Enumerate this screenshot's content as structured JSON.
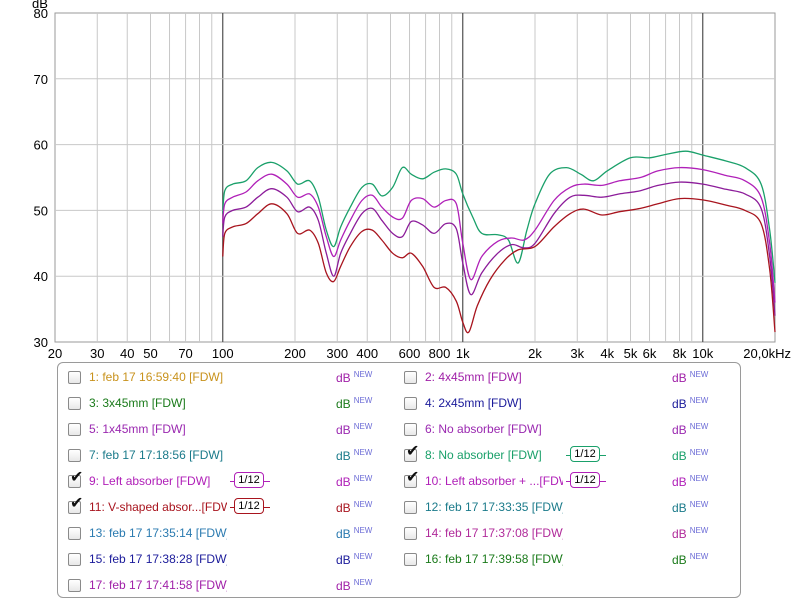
{
  "chart_data": {
    "type": "line",
    "ylabel": "dB",
    "x_unit": "kHz",
    "ylim": [
      30,
      80
    ],
    "xlim": [
      20,
      20000
    ],
    "x_scale": "log",
    "grid": true,
    "y_ticks": [
      30,
      40,
      50,
      60,
      70,
      80
    ],
    "x_ticks": [
      {
        "value": 20,
        "label": "20"
      },
      {
        "value": 30,
        "label": "30"
      },
      {
        "value": 40,
        "label": "40"
      },
      {
        "value": 50,
        "label": "50"
      },
      {
        "value": 70,
        "label": "70"
      },
      {
        "value": 100,
        "label": "100"
      },
      {
        "value": 200,
        "label": "200"
      },
      {
        "value": 300,
        "label": "300"
      },
      {
        "value": 400,
        "label": "400"
      },
      {
        "value": 600,
        "label": "600"
      },
      {
        "value": 800,
        "label": "800"
      },
      {
        "value": 1000,
        "label": "1k"
      },
      {
        "value": 2000,
        "label": "2k"
      },
      {
        "value": 3000,
        "label": "3k"
      },
      {
        "value": 4000,
        "label": "4k"
      },
      {
        "value": 5000,
        "label": "5k"
      },
      {
        "value": 6000,
        "label": "6k"
      },
      {
        "value": 8000,
        "label": "8k"
      },
      {
        "value": 10000,
        "label": "10k"
      },
      {
        "value": 20000,
        "label": "20,0kHz"
      }
    ],
    "series": [
      {
        "name": "8: No absorber [FDW]",
        "color": "#1aa06a",
        "points": [
          [
            100,
            49.5
          ],
          [
            102,
            53
          ],
          [
            110,
            54
          ],
          [
            125,
            54.5
          ],
          [
            140,
            56.5
          ],
          [
            160,
            57.3
          ],
          [
            185,
            56
          ],
          [
            205,
            54
          ],
          [
            230,
            54.5
          ],
          [
            250,
            52
          ],
          [
            270,
            47
          ],
          [
            290,
            44.5
          ],
          [
            310,
            47.5
          ],
          [
            340,
            50.5
          ],
          [
            380,
            53.5
          ],
          [
            420,
            54
          ],
          [
            460,
            52.2
          ],
          [
            510,
            53.5
          ],
          [
            560,
            56.5
          ],
          [
            610,
            55.5
          ],
          [
            680,
            54.8
          ],
          [
            760,
            55.8
          ],
          [
            850,
            56.3
          ],
          [
            940,
            55.5
          ],
          [
            1000,
            52.5
          ],
          [
            1100,
            49
          ],
          [
            1200,
            46.5
          ],
          [
            1400,
            46.3
          ],
          [
            1550,
            45.5
          ],
          [
            1700,
            42
          ],
          [
            1850,
            47
          ],
          [
            2000,
            51
          ],
          [
            2300,
            55.5
          ],
          [
            2700,
            56.5
          ],
          [
            3100,
            55.5
          ],
          [
            3500,
            54.5
          ],
          [
            4000,
            56
          ],
          [
            5000,
            58
          ],
          [
            6000,
            58
          ],
          [
            7000,
            58.5
          ],
          [
            8500,
            59
          ],
          [
            10000,
            58.4
          ],
          [
            12500,
            57.5
          ],
          [
            15000,
            56.5
          ],
          [
            17500,
            54
          ],
          [
            19000,
            47
          ],
          [
            20000,
            39
          ]
        ]
      },
      {
        "name": "10: Left absorber + ...[FDW]",
        "color": "#b020b8",
        "points": [
          [
            100,
            48
          ],
          [
            102,
            51
          ],
          [
            110,
            52
          ],
          [
            125,
            52.8
          ],
          [
            140,
            54.5
          ],
          [
            160,
            55.5
          ],
          [
            185,
            54
          ],
          [
            205,
            52
          ],
          [
            230,
            52.5
          ],
          [
            250,
            50.5
          ],
          [
            270,
            46
          ],
          [
            290,
            43
          ],
          [
            310,
            45.5
          ],
          [
            340,
            48.5
          ],
          [
            380,
            51.5
          ],
          [
            420,
            52.3
          ],
          [
            460,
            50.5
          ],
          [
            510,
            49
          ],
          [
            560,
            48.8
          ],
          [
            610,
            51.5
          ],
          [
            680,
            51.8
          ],
          [
            760,
            50.5
          ],
          [
            850,
            51.5
          ],
          [
            940,
            51
          ],
          [
            1000,
            45
          ],
          [
            1080,
            39.5
          ],
          [
            1200,
            43
          ],
          [
            1400,
            45.3
          ],
          [
            1600,
            45.8
          ],
          [
            1800,
            45.5
          ],
          [
            2000,
            47
          ],
          [
            2400,
            51.5
          ],
          [
            2800,
            53.5
          ],
          [
            3200,
            54
          ],
          [
            3800,
            53.8
          ],
          [
            4500,
            54.5
          ],
          [
            5500,
            55
          ],
          [
            6500,
            56
          ],
          [
            8000,
            56.5
          ],
          [
            10000,
            56.2
          ],
          [
            12500,
            55.3
          ],
          [
            15000,
            54.5
          ],
          [
            17500,
            52
          ],
          [
            19000,
            45
          ],
          [
            20000,
            36
          ]
        ]
      },
      {
        "name": "9: Left absorber [FDW]",
        "color": "#8c1c9a",
        "points": [
          [
            100,
            46
          ],
          [
            102,
            49
          ],
          [
            110,
            50
          ],
          [
            125,
            50.5
          ],
          [
            140,
            52
          ],
          [
            160,
            53.3
          ],
          [
            185,
            52
          ],
          [
            205,
            49.8
          ],
          [
            230,
            50.5
          ],
          [
            250,
            48.5
          ],
          [
            270,
            43.5
          ],
          [
            290,
            40
          ],
          [
            310,
            43.5
          ],
          [
            340,
            46.5
          ],
          [
            380,
            49.5
          ],
          [
            420,
            50.3
          ],
          [
            460,
            48.5
          ],
          [
            510,
            46.5
          ],
          [
            560,
            46
          ],
          [
            610,
            48.3
          ],
          [
            680,
            47.8
          ],
          [
            760,
            46.5
          ],
          [
            850,
            48
          ],
          [
            940,
            47.2
          ],
          [
            1000,
            42
          ],
          [
            1080,
            37.2
          ],
          [
            1200,
            40.5
          ],
          [
            1400,
            43.5
          ],
          [
            1600,
            44.8
          ],
          [
            1800,
            44.3
          ],
          [
            2000,
            45
          ],
          [
            2400,
            49.5
          ],
          [
            2800,
            52
          ],
          [
            3200,
            52.3
          ],
          [
            3800,
            52
          ],
          [
            4500,
            52.5
          ],
          [
            5500,
            53
          ],
          [
            6500,
            53.8
          ],
          [
            8000,
            54.3
          ],
          [
            10000,
            54
          ],
          [
            12500,
            53.2
          ],
          [
            15000,
            52.5
          ],
          [
            17500,
            50.3
          ],
          [
            19000,
            43
          ],
          [
            20000,
            34
          ]
        ]
      },
      {
        "name": "11: V-shaped absor...[FDW]",
        "color": "#a8141e",
        "points": [
          [
            100,
            43
          ],
          [
            102,
            46.5
          ],
          [
            110,
            47.5
          ],
          [
            125,
            48
          ],
          [
            140,
            49.5
          ],
          [
            160,
            51
          ],
          [
            185,
            49.5
          ],
          [
            205,
            46.5
          ],
          [
            230,
            47
          ],
          [
            250,
            45
          ],
          [
            270,
            40.5
          ],
          [
            290,
            39.2
          ],
          [
            310,
            41.5
          ],
          [
            340,
            44.5
          ],
          [
            380,
            46.8
          ],
          [
            420,
            47
          ],
          [
            460,
            45.5
          ],
          [
            510,
            43.5
          ],
          [
            560,
            42.8
          ],
          [
            610,
            43.5
          ],
          [
            680,
            41.5
          ],
          [
            760,
            38.3
          ],
          [
            850,
            38.3
          ],
          [
            940,
            36.2
          ],
          [
            1000,
            33
          ],
          [
            1060,
            31.5
          ],
          [
            1150,
            35.5
          ],
          [
            1300,
            39.5
          ],
          [
            1500,
            42.5
          ],
          [
            1700,
            44
          ],
          [
            2000,
            44.5
          ],
          [
            2400,
            47.5
          ],
          [
            2800,
            49.5
          ],
          [
            3200,
            50.2
          ],
          [
            3800,
            49.3
          ],
          [
            4500,
            49.8
          ],
          [
            5500,
            50.3
          ],
          [
            6500,
            51
          ],
          [
            8000,
            51.8
          ],
          [
            10000,
            51.6
          ],
          [
            12500,
            50.8
          ],
          [
            15000,
            50
          ],
          [
            17500,
            48
          ],
          [
            19000,
            41
          ],
          [
            20000,
            31.5
          ]
        ]
      }
    ]
  },
  "legend": {
    "db_label": "dB",
    "new_label": "NEW",
    "items": [
      {
        "label": "1: feb 17 16:59:40 [FDW]",
        "color": "#c8921c",
        "db_color": "#a020a8",
        "checked": false,
        "smoothing": ""
      },
      {
        "label": "2: 4x45mm [FDW]",
        "color": "#a020a8",
        "db_color": "#a020a8",
        "checked": false,
        "smoothing": ""
      },
      {
        "label": "3: 3x45mm [FDW]",
        "color": "#1a7a1a",
        "db_color": "#1a7a1a",
        "checked": false,
        "smoothing": ""
      },
      {
        "label": "4: 2x45mm [FDW]",
        "color": "#1a1a9a",
        "db_color": "#1a1a9a",
        "checked": false,
        "smoothing": ""
      },
      {
        "label": "5: 1x45mm [FDW]",
        "color": "#9a28b0",
        "db_color": "#9a28b0",
        "checked": false,
        "smoothing": ""
      },
      {
        "label": "6: No absorber [FDW]",
        "color": "#9a28b0",
        "db_color": "#9a28b0",
        "checked": false,
        "smoothing": ""
      },
      {
        "label": "7: feb 17 17:18:56 [FDW]",
        "color": "#1a7a8a",
        "db_color": "#1a7a8a",
        "checked": false,
        "smoothing": ""
      },
      {
        "label": "8: No absorber [FDW]",
        "color": "#1aa06a",
        "db_color": "#1aa06a",
        "checked": true,
        "smoothing": "1/12"
      },
      {
        "label": "9: Left absorber [FDW]",
        "color": "#b020b8",
        "db_color": "#b020b8",
        "checked": true,
        "smoothing": "1/12"
      },
      {
        "label": "10: Left absorber + ...[FDW]",
        "color": "#b020b8",
        "db_color": "#b020b8",
        "checked": true,
        "smoothing": "1/12"
      },
      {
        "label": "11: V-shaped absor...[FDW]",
        "color": "#a8141e",
        "db_color": "#a8141e",
        "checked": true,
        "smoothing": "1/12"
      },
      {
        "label": "12: feb 17 17:33:35 [FDW]",
        "color": "#1a7a8a",
        "db_color": "#1a7a8a",
        "checked": false,
        "smoothing": ""
      },
      {
        "label": "13: feb 17 17:35:14 [FDW]",
        "color": "#2a7ab0",
        "db_color": "#2a7ab0",
        "checked": false,
        "smoothing": ""
      },
      {
        "label": "14: feb 17 17:37:08 [FDW]",
        "color": "#b02a9a",
        "db_color": "#b02a9a",
        "checked": false,
        "smoothing": ""
      },
      {
        "label": "15: feb 17 17:38:28 [FDW]",
        "color": "#1a1a9a",
        "db_color": "#1a1a9a",
        "checked": false,
        "smoothing": ""
      },
      {
        "label": "16: feb 17 17:39:58 [FDW]",
        "color": "#1a7a1a",
        "db_color": "#1a7a1a",
        "checked": false,
        "smoothing": ""
      },
      {
        "label": "17: feb 17 17:41:58 [FDW]",
        "color": "#a020a8",
        "db_color": "#a020a8",
        "checked": false,
        "smoothing": ""
      }
    ]
  }
}
